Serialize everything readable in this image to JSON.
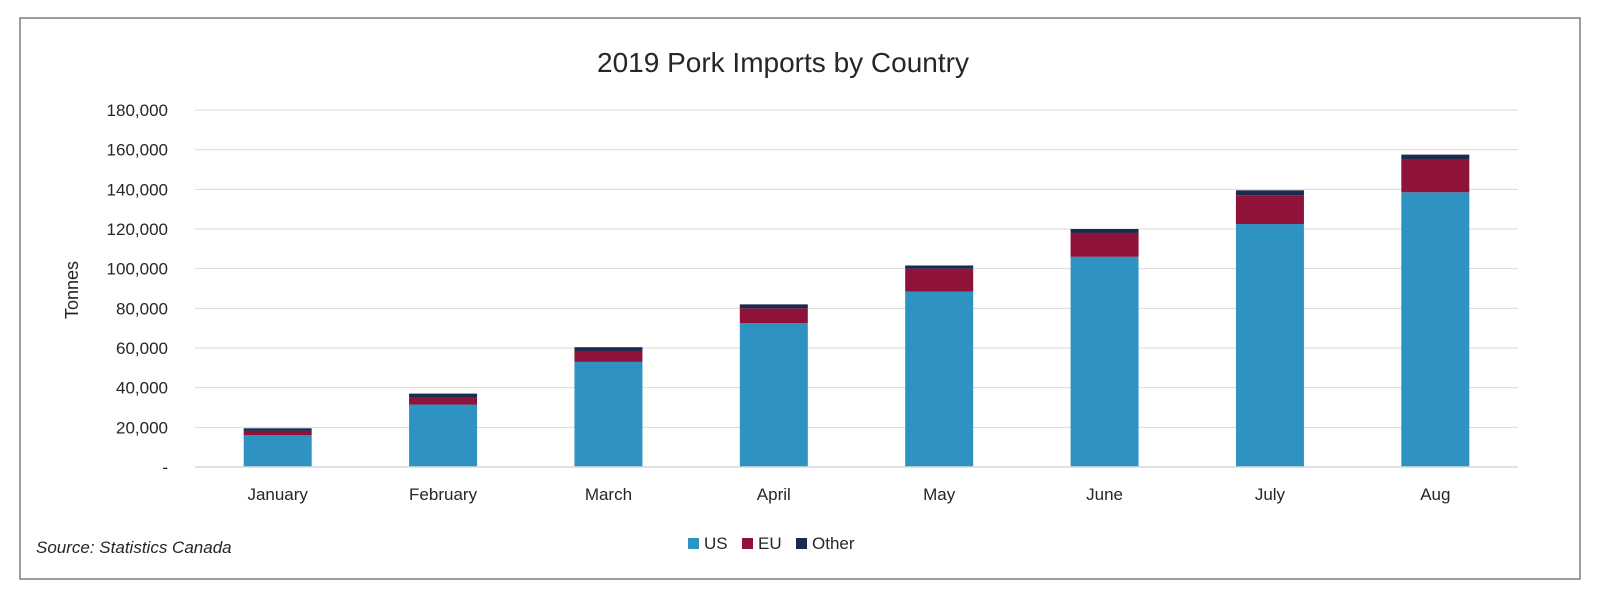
{
  "chart_data": {
    "type": "bar",
    "stacked": true,
    "title": "2019 Pork Imports by Country",
    "xlabel": "",
    "ylabel": "Tonnes",
    "categories": [
      "January",
      "February",
      "March",
      "April",
      "May",
      "June",
      "July",
      "Aug"
    ],
    "series": [
      {
        "name": "US",
        "color": "#2e92c2",
        "values": [
          16000,
          31500,
          53000,
          72500,
          88500,
          106000,
          122500,
          138500
        ]
      },
      {
        "name": "EU",
        "color": "#8f1239",
        "values": [
          2200,
          3800,
          5500,
          7500,
          11500,
          12000,
          14500,
          16500
        ]
      },
      {
        "name": "Other",
        "color": "#1c2a4e",
        "values": [
          1300,
          1700,
          1900,
          2000,
          1600,
          2000,
          2500,
          2500
        ]
      }
    ],
    "ylim": [
      0,
      180000
    ],
    "yticks": [
      0,
      20000,
      40000,
      60000,
      80000,
      100000,
      120000,
      140000,
      160000,
      180000
    ],
    "ytick_labels": [
      "-",
      "20,000",
      "40,000",
      "60,000",
      "80,000",
      "100,000",
      "120,000",
      "140,000",
      "160,000",
      "180,000"
    ],
    "grid": true,
    "legend_position": "bottom",
    "source_note": "Source: Statistics Canada"
  }
}
